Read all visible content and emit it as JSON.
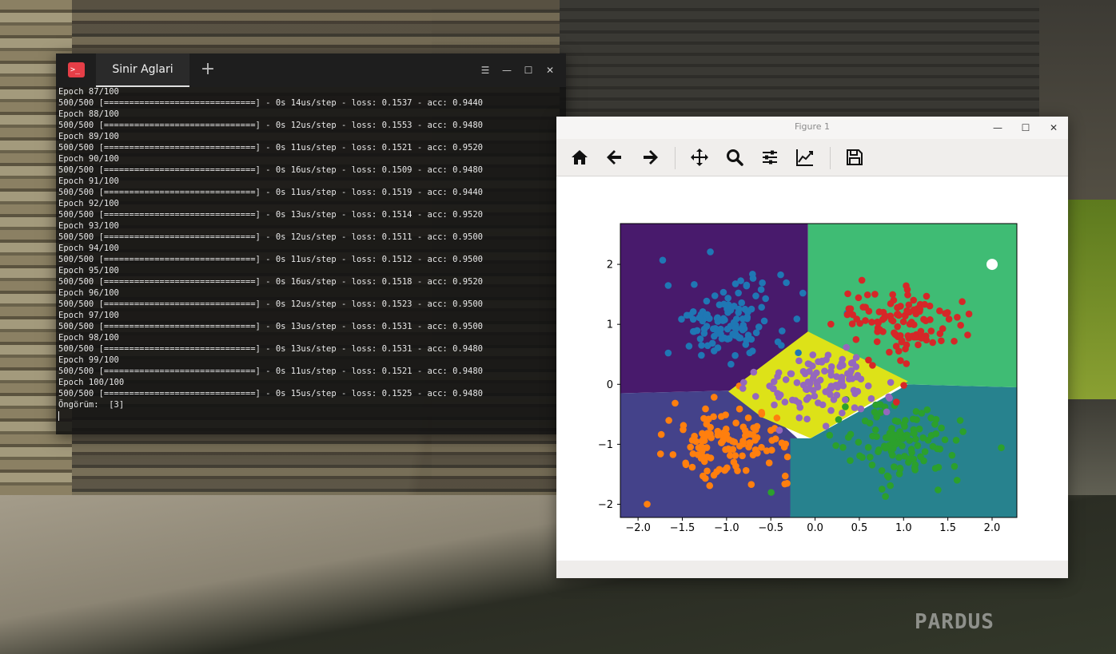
{
  "desktop": {
    "brand": "PARDUS"
  },
  "terminal": {
    "tab_label": "Sinir Aglari",
    "new_tab": "+",
    "controls": {
      "menu": "☰",
      "minimize": "—",
      "maximize": "☐",
      "close": "✕"
    },
    "lines": [
      "Epoch 87/100",
      "500/500 [==============================] - 0s 14us/step - loss: 0.1537 - acc: 0.9440",
      "Epoch 88/100",
      "500/500 [==============================] - 0s 12us/step - loss: 0.1553 - acc: 0.9480",
      "Epoch 89/100",
      "500/500 [==============================] - 0s 11us/step - loss: 0.1521 - acc: 0.9520",
      "Epoch 90/100",
      "500/500 [==============================] - 0s 16us/step - loss: 0.1509 - acc: 0.9480",
      "Epoch 91/100",
      "500/500 [==============================] - 0s 11us/step - loss: 0.1519 - acc: 0.9440",
      "Epoch 92/100",
      "500/500 [==============================] - 0s 13us/step - loss: 0.1514 - acc: 0.9520",
      "Epoch 93/100",
      "500/500 [==============================] - 0s 12us/step - loss: 0.1511 - acc: 0.9500",
      "Epoch 94/100",
      "500/500 [==============================] - 0s 11us/step - loss: 0.1512 - acc: 0.9500",
      "Epoch 95/100",
      "500/500 [==============================] - 0s 16us/step - loss: 0.1518 - acc: 0.9520",
      "Epoch 96/100",
      "500/500 [==============================] - 0s 12us/step - loss: 0.1523 - acc: 0.9500",
      "Epoch 97/100",
      "500/500 [==============================] - 0s 13us/step - loss: 0.1531 - acc: 0.9500",
      "Epoch 98/100",
      "500/500 [==============================] - 0s 13us/step - loss: 0.1531 - acc: 0.9480",
      "Epoch 99/100",
      "500/500 [==============================] - 0s 11us/step - loss: 0.1521 - acc: 0.9480",
      "Epoch 100/100",
      "500/500 [==============================] - 0s 15us/step - loss: 0.1525 - acc: 0.9480",
      "Öngörüm:  [3]"
    ]
  },
  "figure": {
    "title": "Figure 1",
    "controls": {
      "minimize": "—",
      "maximize": "☐",
      "close": "✕"
    },
    "toolbar": [
      "home-icon",
      "back-arrow-icon",
      "forward-arrow-icon",
      "pan-icon",
      "zoom-icon",
      "subplots-icon",
      "edit-axes-icon",
      "save-icon"
    ]
  },
  "chart_data": {
    "type": "scatter",
    "title": "",
    "xlabel": "",
    "ylabel": "",
    "xlim": [
      -2.2,
      2.28
    ],
    "ylim": [
      -2.22,
      2.68
    ],
    "xticks": [
      "−2.0",
      "−1.5",
      "−1.0",
      "−0.5",
      "0.0",
      "0.5",
      "1.0",
      "1.5",
      "2.0"
    ],
    "xtick_values": [
      -2.0,
      -1.5,
      -1.0,
      -0.5,
      0.0,
      0.5,
      1.0,
      1.5,
      2.0
    ],
    "yticks": [
      "−2",
      "−1",
      "0",
      "1",
      "2"
    ],
    "ytick_values": [
      -2,
      -1,
      0,
      1,
      2
    ],
    "grid": false,
    "decision_regions": [
      {
        "name": "class-0",
        "color": "#481a6c",
        "polygon": [
          [
            -2.2,
            2.68
          ],
          [
            -0.08,
            2.68
          ],
          [
            -0.08,
            0.4
          ],
          [
            -0.8,
            -0.1
          ],
          [
            -2.2,
            -0.15
          ]
        ]
      },
      {
        "name": "class-1",
        "color": "#44428a",
        "polygon": [
          [
            -2.2,
            -0.15
          ],
          [
            -0.8,
            -0.1
          ],
          [
            -0.2,
            -0.9
          ],
          [
            -0.28,
            -2.22
          ],
          [
            -2.2,
            -2.22
          ]
        ]
      },
      {
        "name": "class-2",
        "color": "#27828e",
        "polygon": [
          [
            2.28,
            -0.05
          ],
          [
            1.05,
            0.0
          ],
          [
            -0.05,
            -0.9
          ],
          [
            -0.28,
            -0.9
          ],
          [
            -0.28,
            -2.22
          ],
          [
            2.28,
            -2.22
          ]
        ]
      },
      {
        "name": "class-3",
        "color": "#3fbc74",
        "polygon": [
          [
            -0.08,
            2.68
          ],
          [
            2.28,
            2.68
          ],
          [
            2.28,
            -0.05
          ],
          [
            1.05,
            0.0
          ],
          [
            -0.08,
            0.4
          ]
        ]
      },
      {
        "name": "class-4",
        "color": "#dde218",
        "polygon": [
          [
            -0.08,
            0.88
          ],
          [
            1.05,
            0.05
          ],
          [
            -0.05,
            -0.9
          ],
          [
            -0.6,
            -0.55
          ],
          [
            -0.98,
            -0.12
          ]
        ]
      }
    ],
    "series": [
      {
        "color": "#1f77b4",
        "center": [
          -1.0,
          1.05
        ],
        "spread": [
          0.35,
          0.35
        ],
        "count": 120
      },
      {
        "color": "#ff7f0e",
        "center": [
          -0.95,
          -0.95
        ],
        "spread": [
          0.35,
          0.3
        ],
        "count": 120
      },
      {
        "color": "#2ca02c",
        "center": [
          1.0,
          -1.0
        ],
        "spread": [
          0.35,
          0.33
        ],
        "count": 120
      },
      {
        "color": "#d62728",
        "center": [
          1.0,
          1.0
        ],
        "spread": [
          0.36,
          0.32
        ],
        "count": 120
      },
      {
        "color": "#9467bd",
        "center": [
          0.05,
          0.02
        ],
        "spread": [
          0.35,
          0.3
        ],
        "count": 110
      }
    ],
    "highlight_point": {
      "x": 2.0,
      "y": 2.0,
      "color": "#ffffff"
    }
  }
}
